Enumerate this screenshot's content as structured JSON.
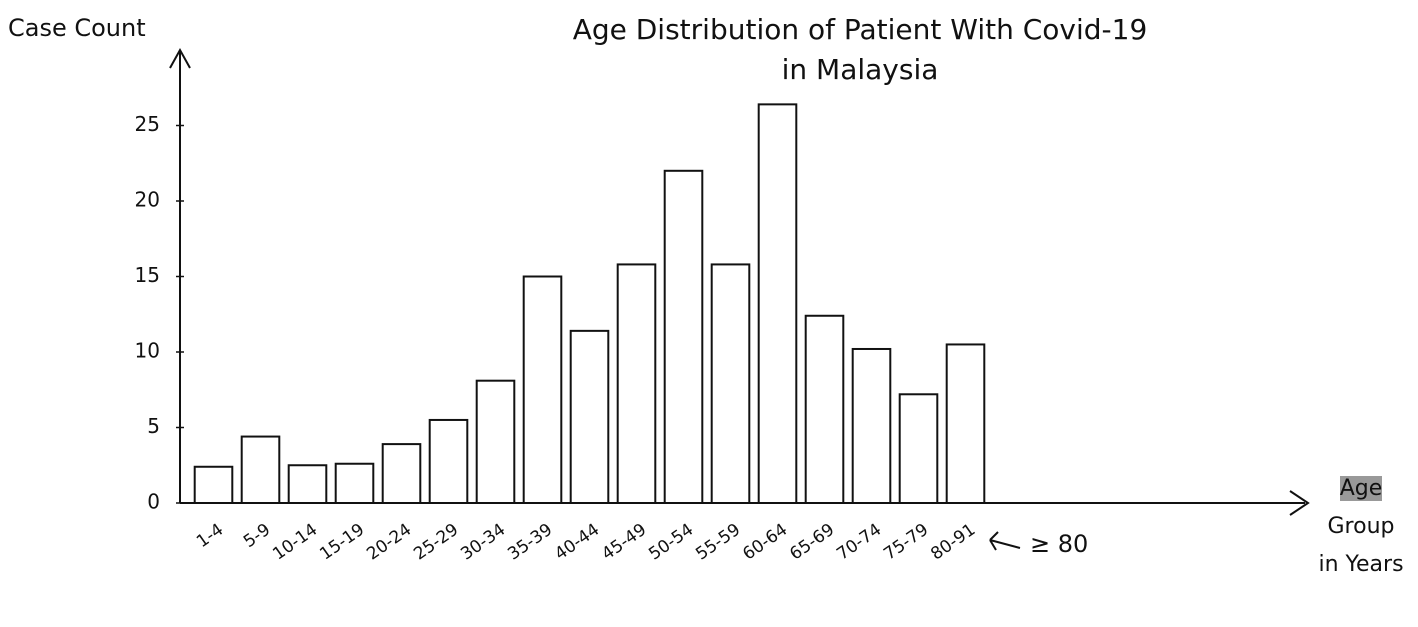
{
  "chart_data": {
    "type": "bar",
    "title": "Age Distribution of Patient With Covid-19 in Malaysia",
    "y_label": "Case Count",
    "x_label": "Age Group in Years",
    "annotation": "≥ 80",
    "categories": [
      "1-4",
      "5-9",
      "10-14",
      "15-19",
      "20-24",
      "25-29",
      "30-34",
      "35-39",
      "40-44",
      "45-49",
      "50-54",
      "55-59",
      "60-64",
      "65-69",
      "70-74",
      "75-79",
      "80-91"
    ],
    "values": [
      2.4,
      4.4,
      2.5,
      2.6,
      3.9,
      5.5,
      8.1,
      15,
      11.4,
      15.8,
      22,
      15.8,
      26.4,
      12.4,
      10.2,
      7.2,
      10.5
    ],
    "color": "#ffffff",
    "ylim": [
      0,
      30
    ],
    "yticks": [
      0,
      5,
      10,
      15,
      20,
      25
    ],
    "grid": false
  }
}
